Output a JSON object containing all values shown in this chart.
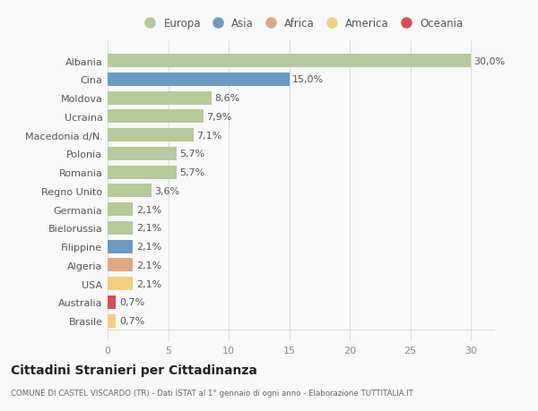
{
  "countries": [
    "Albania",
    "Cina",
    "Moldova",
    "Ucraina",
    "Macedonia d/N.",
    "Polonia",
    "Romania",
    "Regno Unito",
    "Germania",
    "Bielorussia",
    "Filippine",
    "Algeria",
    "USA",
    "Australia",
    "Brasile"
  ],
  "values": [
    30.0,
    15.0,
    8.6,
    7.9,
    7.1,
    5.7,
    5.7,
    3.6,
    2.1,
    2.1,
    2.1,
    2.1,
    2.1,
    0.7,
    0.7
  ],
  "labels": [
    "30,0%",
    "15,0%",
    "8,6%",
    "7,9%",
    "7,1%",
    "5,7%",
    "5,7%",
    "3,6%",
    "2,1%",
    "2,1%",
    "2,1%",
    "2,1%",
    "2,1%",
    "0,7%",
    "0,7%"
  ],
  "continents": [
    "Europa",
    "Asia",
    "Europa",
    "Europa",
    "Europa",
    "Europa",
    "Europa",
    "Europa",
    "Europa",
    "Europa",
    "Asia",
    "Africa",
    "America",
    "Oceania",
    "America"
  ],
  "continent_colors": {
    "Europa": "#b5c99a",
    "Asia": "#6b9bc3",
    "Africa": "#e0a882",
    "America": "#f0d080",
    "Oceania": "#d94f4f"
  },
  "legend_order": [
    "Europa",
    "Asia",
    "Africa",
    "America",
    "Oceania"
  ],
  "title": "Cittadini Stranieri per Cittadinanza",
  "subtitle": "COMUNE DI CASTEL VISCARDO (TR) - Dati ISTAT al 1° gennaio di ogni anno - Elaborazione TUTTITALIA.IT",
  "xlim": [
    0,
    32
  ],
  "xticks": [
    0,
    5,
    10,
    15,
    20,
    25,
    30
  ],
  "background_color": "#f9f9f9",
  "plot_bg_color": "#f9f9f9",
  "grid_color": "#dddddd",
  "bar_height": 0.72,
  "label_fontsize": 8,
  "ytick_fontsize": 8,
  "xtick_fontsize": 8
}
